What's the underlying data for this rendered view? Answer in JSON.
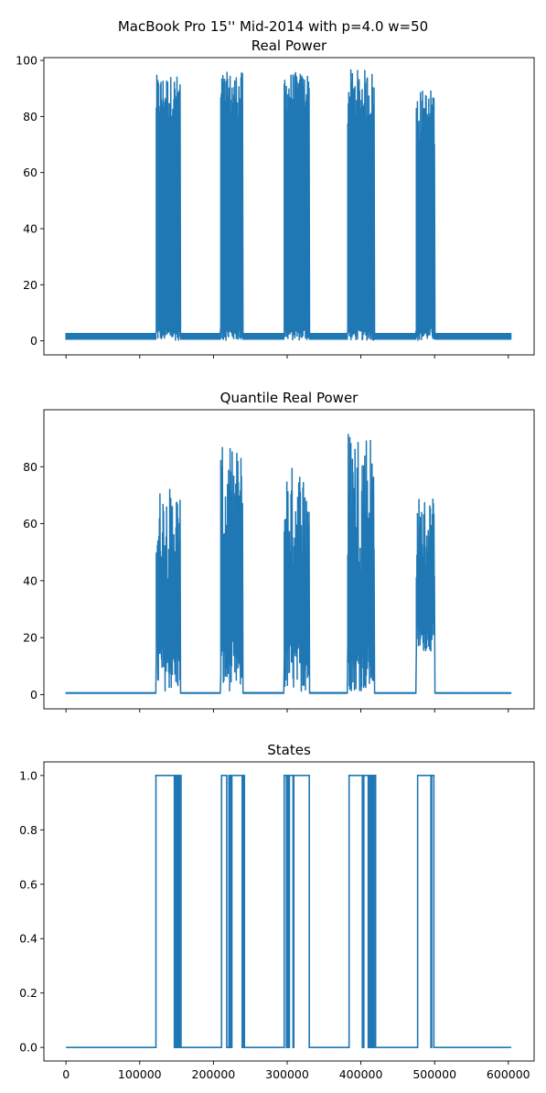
{
  "figure_title": "MacBook Pro 15'' Mid-2014 with p=4.0 w=50",
  "colors": {
    "series": "#1f77b4",
    "axes": "#000000",
    "background": "#ffffff"
  },
  "chart_data": [
    {
      "type": "line",
      "title": "Real Power",
      "xlabel": "",
      "ylabel": "",
      "xlim": [
        -30000,
        635000
      ],
      "ylim": [
        -5,
        101
      ],
      "yticks": [
        "0",
        "20",
        "40",
        "60",
        "80",
        "100"
      ],
      "xticks_labeled": false,
      "grid": false,
      "baseline": [
        0.4,
        2.8
      ],
      "bursts": [
        {
          "x": [
            122000,
            155000
          ],
          "ymin": [
            0,
            5
          ],
          "ymax": [
            78,
            95
          ]
        },
        {
          "x": [
            210000,
            240000
          ],
          "ymin": [
            0,
            5
          ],
          "ymax": [
            78,
            96
          ]
        },
        {
          "x": [
            296000,
            330000
          ],
          "ymin": [
            0,
            5
          ],
          "ymax": [
            80,
            96
          ]
        },
        {
          "x": [
            382000,
            418000
          ],
          "ymin": [
            0,
            5
          ],
          "ymax": [
            75,
            97
          ]
        },
        {
          "x": [
            475000,
            500000
          ],
          "ymin": [
            0,
            5
          ],
          "ymax": [
            70,
            90
          ]
        }
      ]
    },
    {
      "type": "line",
      "title": "Quantile Real Power",
      "xlabel": "",
      "ylabel": "",
      "xlim": [
        -30000,
        635000
      ],
      "ylim": [
        -5,
        100
      ],
      "yticks": [
        "0",
        "20",
        "40",
        "60",
        "80"
      ],
      "xticks_labeled": false,
      "grid": false,
      "baseline": [
        0.3,
        0.8
      ],
      "bursts": [
        {
          "x": [
            122000,
            155000
          ],
          "ymin": [
            1,
            20
          ],
          "ymax": [
            40,
            73
          ]
        },
        {
          "x": [
            210000,
            240000
          ],
          "ymin": [
            1,
            20
          ],
          "ymax": [
            40,
            87
          ]
        },
        {
          "x": [
            296000,
            330000
          ],
          "ymin": [
            1,
            20
          ],
          "ymax": [
            40,
            81
          ]
        },
        {
          "x": [
            382000,
            418000
          ],
          "ymin": [
            1,
            20
          ],
          "ymax": [
            40,
            95
          ]
        },
        {
          "x": [
            475000,
            500000
          ],
          "ymin": [
            15,
            25
          ],
          "ymax": [
            40,
            70
          ]
        }
      ]
    },
    {
      "type": "line",
      "title": "States",
      "xlabel": "",
      "ylabel": "",
      "xlim": [
        -30000,
        635000
      ],
      "ylim": [
        -0.05,
        1.05
      ],
      "yticks": [
        "0.0",
        "0.2",
        "0.4",
        "0.6",
        "0.8",
        "1.0"
      ],
      "xticks": [
        "0",
        "100000",
        "200000",
        "300000",
        "400000",
        "500000",
        "600000"
      ],
      "xticks_labeled": true,
      "grid": false,
      "step_segments_high": [
        [
          122000,
          147000
        ],
        [
          148500,
          150000
        ],
        [
          151000,
          153000
        ],
        [
          154000,
          156000
        ],
        [
          211000,
          218000
        ],
        [
          221000,
          223000
        ],
        [
          225000,
          239000
        ],
        [
          240500,
          242000
        ],
        [
          296000,
          299000
        ],
        [
          300000,
          302000
        ],
        [
          303000,
          308000
        ],
        [
          309000,
          330000
        ],
        [
          384000,
          402000
        ],
        [
          404000,
          410000
        ],
        [
          412000,
          414000
        ],
        [
          415000,
          417000
        ],
        [
          418000,
          420000
        ],
        [
          477000,
          495000
        ],
        [
          496000,
          499000
        ]
      ],
      "x_end": 604000
    }
  ]
}
